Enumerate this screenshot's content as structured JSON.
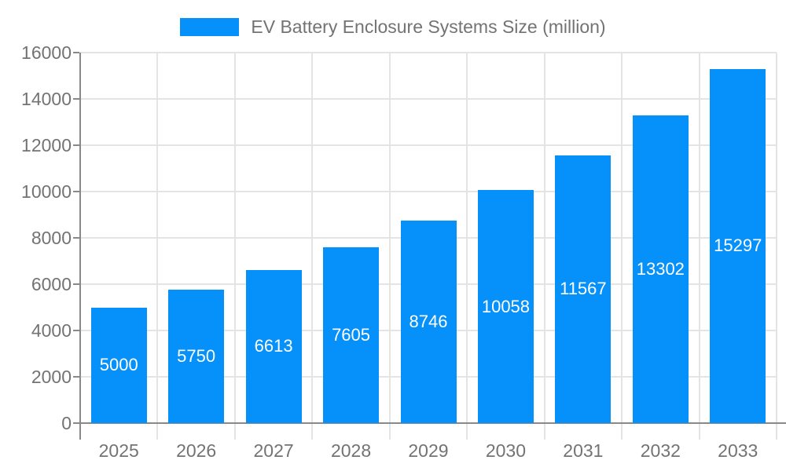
{
  "colors": {
    "background": "#ffffff",
    "bar": "#0590fa",
    "grid": "#e4e4e4",
    "axis": "#898989",
    "tick_text": "#737373",
    "bar_label": "#ffffff"
  },
  "chart_data": {
    "type": "bar",
    "title": "EV Battery Enclosure Systems Size (million)",
    "categories": [
      "2025",
      "2026",
      "2027",
      "2028",
      "2029",
      "2030",
      "2031",
      "2032",
      "2033"
    ],
    "values": [
      5000,
      5750,
      6613,
      7605,
      8746,
      10058,
      11567,
      13302,
      15297
    ],
    "xlabel": "",
    "ylabel": "",
    "ylim": [
      0,
      16000
    ],
    "ytick_step": 2000,
    "grid": true,
    "legend_position": "top",
    "value_labels_position": "inside-center"
  }
}
